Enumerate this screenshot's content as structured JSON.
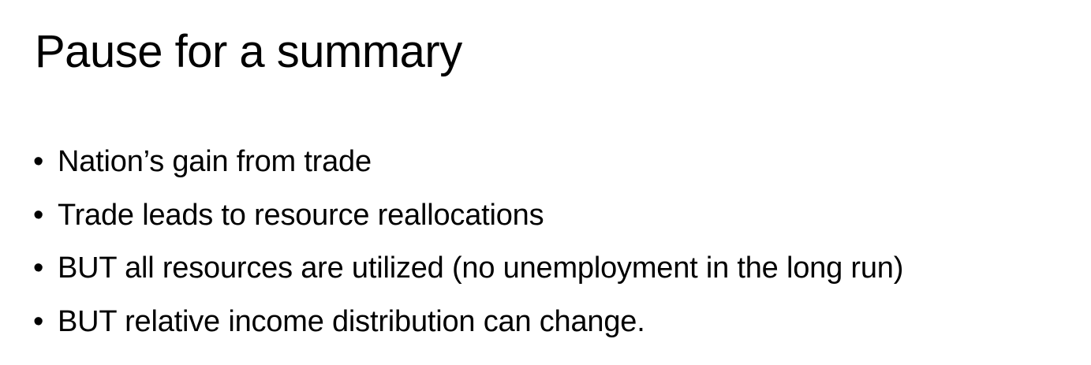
{
  "slide": {
    "title": "Pause for a summary",
    "bullet_glyph": "•",
    "bullets": [
      "Nation’s gain from trade",
      "Trade leads to resource reallocations",
      "BUT all resources are utilized (no unemployment in the long run)",
      "BUT relative income distribution can change."
    ]
  },
  "colors": {
    "background": "#ffffff",
    "text": "#000000"
  }
}
